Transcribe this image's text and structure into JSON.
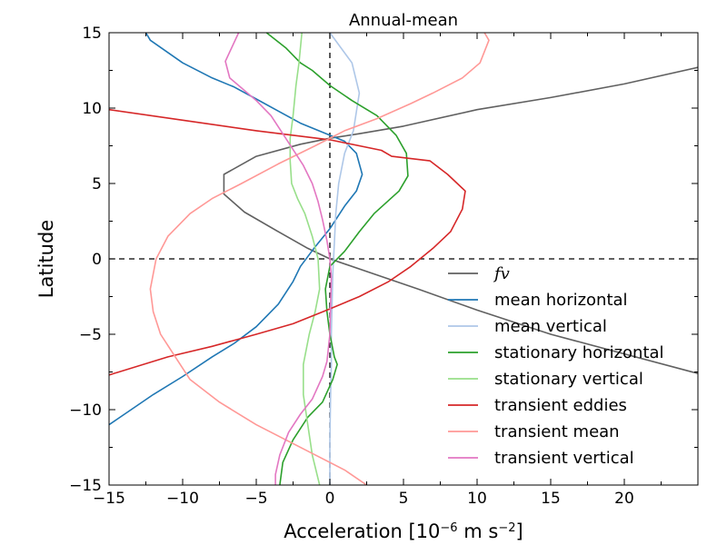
{
  "chart_data": {
    "type": "line",
    "title": "Annual-mean",
    "xlabel": "Acceleration [10",
    "xlabel_exp": "−6",
    "xlabel_units": " m s",
    "xlabel_units_exp": "−2",
    "xlabel_close": "]",
    "ylabel": "Latitude",
    "xlim": [
      -15,
      25
    ],
    "ylim": [
      -15,
      15
    ],
    "xticks": [
      -15,
      -10,
      -5,
      0,
      5,
      10,
      15,
      20
    ],
    "xtick_labels": [
      "−15",
      "−10",
      "−5",
      "0",
      "5",
      "10",
      "15",
      "20"
    ],
    "yticks": [
      -15,
      -10,
      -5,
      0,
      5,
      10,
      15
    ],
    "ytick_labels": [
      "−15",
      "−10",
      "−5",
      "0",
      "5",
      "10",
      "15"
    ],
    "reference_lines": [
      {
        "orientation": "vertical",
        "value": 0,
        "style": "dashed",
        "color": "#000000"
      },
      {
        "orientation": "horizontal",
        "value": 0,
        "style": "dashed",
        "color": "#000000"
      }
    ],
    "legend_placement": "lower-right",
    "series": [
      {
        "name": "fv",
        "color": "#606060",
        "math": true,
        "points": [
          [
            25,
            12.7
          ],
          [
            20,
            11.6
          ],
          [
            15,
            10.7
          ],
          [
            10,
            9.9
          ],
          [
            5,
            8.8
          ],
          [
            2,
            8.3
          ],
          [
            0,
            8.0
          ],
          [
            -2,
            7.6
          ],
          [
            -5,
            6.8
          ],
          [
            -7.2,
            5.6
          ],
          [
            -7.2,
            4.3
          ],
          [
            -5.8,
            3.1
          ],
          [
            -3.5,
            1.8
          ],
          [
            -1.5,
            0.7
          ],
          [
            0,
            0
          ],
          [
            3,
            -1.0
          ],
          [
            6,
            -2.0
          ],
          [
            10,
            -3.4
          ],
          [
            15,
            -5.0
          ],
          [
            20,
            -6.3
          ],
          [
            25,
            -7.6
          ]
        ]
      },
      {
        "name": "mean horizontal",
        "color": "#1f77b4",
        "points": [
          [
            -12.5,
            15
          ],
          [
            -12.2,
            14.5
          ],
          [
            -10,
            13
          ],
          [
            -8,
            12
          ],
          [
            -6.5,
            11.4
          ],
          [
            -5,
            10.6
          ],
          [
            -3.5,
            9.8
          ],
          [
            -2,
            9.0
          ],
          [
            0,
            8.2
          ],
          [
            1,
            7.8
          ],
          [
            1.8,
            7.0
          ],
          [
            2.2,
            5.6
          ],
          [
            1.8,
            4.5
          ],
          [
            1,
            3.5
          ],
          [
            0,
            2.0
          ],
          [
            -1,
            0.8
          ],
          [
            -2,
            -0.5
          ],
          [
            -2.5,
            -1.5
          ],
          [
            -3.5,
            -3.0
          ],
          [
            -5,
            -4.5
          ],
          [
            -6.5,
            -5.6
          ],
          [
            -8,
            -6.5
          ],
          [
            -10,
            -7.8
          ],
          [
            -12,
            -9.0
          ],
          [
            -13.5,
            -10
          ],
          [
            -15,
            -11
          ]
        ]
      },
      {
        "name": "mean vertical",
        "color": "#aec7e8",
        "points": [
          [
            0,
            15
          ],
          [
            1.5,
            13
          ],
          [
            2,
            11
          ],
          [
            1.6,
            8.5
          ],
          [
            1.0,
            7.0
          ],
          [
            0.6,
            5.0
          ],
          [
            0.4,
            3.0
          ],
          [
            0.3,
            1.0
          ],
          [
            0.2,
            -1.0
          ],
          [
            0.15,
            -3.0
          ],
          [
            0.1,
            -5.0
          ],
          [
            0.1,
            -7.0
          ],
          [
            0.05,
            -9.0
          ],
          [
            0,
            -12
          ],
          [
            0,
            -15
          ]
        ]
      },
      {
        "name": "stationary horizontal",
        "color": "#2ca02c",
        "points": [
          [
            -4.3,
            15
          ],
          [
            -3,
            14
          ],
          [
            -2,
            13
          ],
          [
            -1.2,
            12.5
          ],
          [
            0,
            11.5
          ],
          [
            1.5,
            10.5
          ],
          [
            3.2,
            9.5
          ],
          [
            4.5,
            8.2
          ],
          [
            5.2,
            7.0
          ],
          [
            5.3,
            5.5
          ],
          [
            4.7,
            4.5
          ],
          [
            3,
            3.0
          ],
          [
            2,
            1.8
          ],
          [
            1,
            0.5
          ],
          [
            0,
            -0.5
          ],
          [
            -0.3,
            -2.0
          ],
          [
            -0.2,
            -3.5
          ],
          [
            0,
            -5
          ],
          [
            0.3,
            -6.5
          ],
          [
            0.5,
            -7.0
          ],
          [
            0.2,
            -8
          ],
          [
            -0.5,
            -9.5
          ],
          [
            -1.5,
            -10.5
          ],
          [
            -2.5,
            -12
          ],
          [
            -3.2,
            -13.5
          ],
          [
            -3.4,
            -15
          ]
        ]
      },
      {
        "name": "stationary vertical",
        "color": "#98df8a",
        "points": [
          [
            -1.9,
            15
          ],
          [
            -2.1,
            13
          ],
          [
            -2.3,
            11.5
          ],
          [
            -2.5,
            9.5
          ],
          [
            -2.7,
            8
          ],
          [
            -2.7,
            6.5
          ],
          [
            -2.6,
            5
          ],
          [
            -2.2,
            4
          ],
          [
            -1.7,
            3
          ],
          [
            -1.2,
            1.5
          ],
          [
            -0.8,
            0
          ],
          [
            -0.7,
            -2
          ],
          [
            -1.0,
            -3.5
          ],
          [
            -1.4,
            -5
          ],
          [
            -1.8,
            -7
          ],
          [
            -1.8,
            -9
          ],
          [
            -1.5,
            -11
          ],
          [
            -1.2,
            -13
          ],
          [
            -0.7,
            -15
          ]
        ]
      },
      {
        "name": "transient eddies",
        "color": "#d62728",
        "points": [
          [
            -15,
            9.9
          ],
          [
            -10,
            9.2
          ],
          [
            -5,
            8.5
          ],
          [
            0,
            7.9
          ],
          [
            3.5,
            7.2
          ],
          [
            4.2,
            6.8
          ],
          [
            6.8,
            6.5
          ],
          [
            8.0,
            5.6
          ],
          [
            9.2,
            4.5
          ],
          [
            9,
            3.3
          ],
          [
            8.2,
            1.8
          ],
          [
            7,
            0.7
          ],
          [
            5.5,
            -0.5
          ],
          [
            4,
            -1.5
          ],
          [
            2,
            -2.5
          ],
          [
            -0.2,
            -3.4
          ],
          [
            -2.5,
            -4.3
          ],
          [
            -5,
            -5.0
          ],
          [
            -8,
            -5.8
          ],
          [
            -11,
            -6.5
          ],
          [
            -15,
            -7.7
          ]
        ]
      },
      {
        "name": "transient mean",
        "color": "#ff9896",
        "points": [
          [
            10.5,
            15
          ],
          [
            10.8,
            14.5
          ],
          [
            10.2,
            13
          ],
          [
            9,
            12
          ],
          [
            7,
            11
          ],
          [
            5.5,
            10.3
          ],
          [
            3.2,
            9.3
          ],
          [
            1,
            8.5
          ],
          [
            -1,
            7.5
          ],
          [
            -3.5,
            6.3
          ],
          [
            -6,
            5
          ],
          [
            -8,
            4
          ],
          [
            -9.5,
            3
          ],
          [
            -11,
            1.5
          ],
          [
            -11.8,
            0
          ],
          [
            -12.2,
            -2
          ],
          [
            -12,
            -3.5
          ],
          [
            -11.5,
            -5
          ],
          [
            -10.5,
            -6.5
          ],
          [
            -9.5,
            -8
          ],
          [
            -7.5,
            -9.5
          ],
          [
            -5,
            -11
          ],
          [
            -3,
            -12
          ],
          [
            -1,
            -13
          ],
          [
            1,
            -14
          ],
          [
            2.5,
            -15
          ]
        ]
      },
      {
        "name": "transient vertical",
        "color": "#e377c2",
        "points": [
          [
            -6.2,
            15
          ],
          [
            -7.1,
            13.1
          ],
          [
            -6.8,
            12.0
          ],
          [
            -6.2,
            11.5
          ],
          [
            -5,
            10.5
          ],
          [
            -4,
            9.5
          ],
          [
            -3.2,
            8.3
          ],
          [
            -2.6,
            7.4
          ],
          [
            -1.8,
            6.2
          ],
          [
            -1.2,
            5.0
          ],
          [
            -0.8,
            3.8
          ],
          [
            -0.5,
            2.6
          ],
          [
            -0.2,
            1.2
          ],
          [
            0,
            0
          ],
          [
            0.1,
            -1.2
          ],
          [
            0.05,
            -3.0
          ],
          [
            0,
            -5
          ],
          [
            -0.2,
            -6.8
          ],
          [
            -0.5,
            -7.8
          ],
          [
            -1.2,
            -9.3
          ],
          [
            -2,
            -10.3
          ],
          [
            -2.8,
            -11.5
          ],
          [
            -3.4,
            -13
          ],
          [
            -3.7,
            -14.3
          ],
          [
            -3.7,
            -15
          ]
        ]
      }
    ]
  }
}
